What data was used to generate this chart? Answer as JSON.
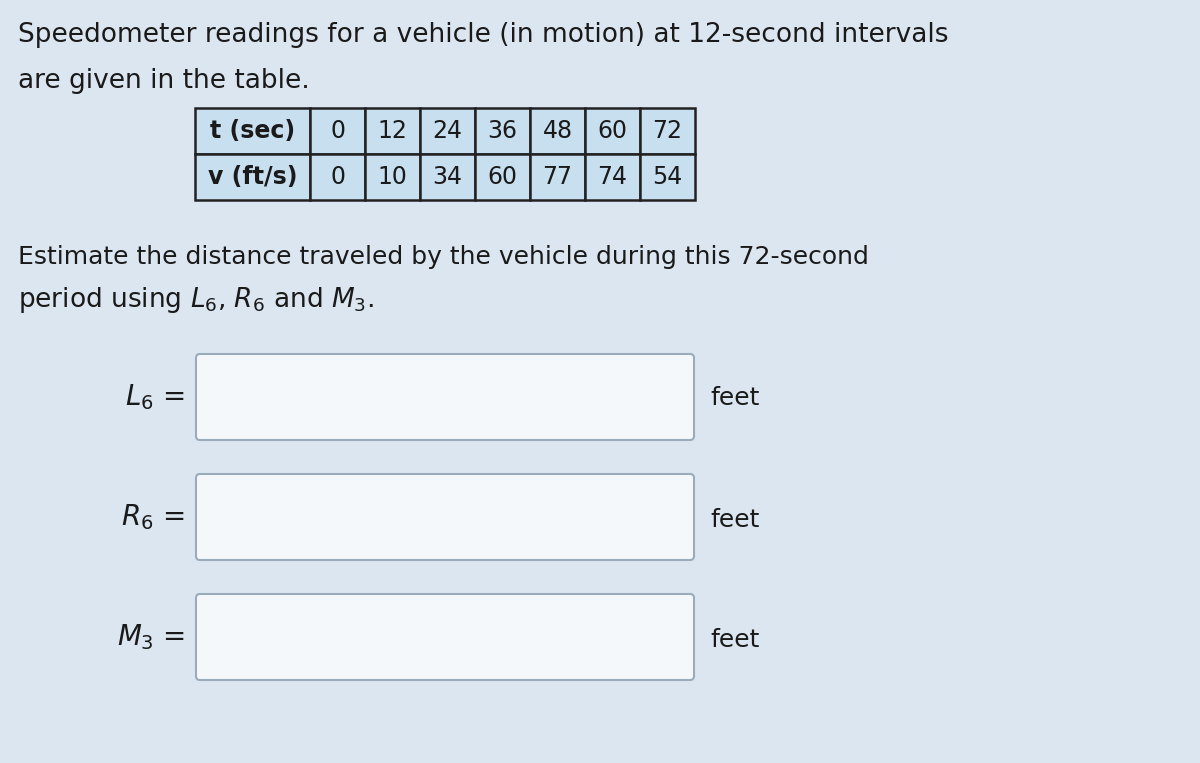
{
  "title_line1": "Speedometer readings for a vehicle (in motion) at 12-second intervals",
  "title_line2": "are given in the table.",
  "table_headers": [
    "t (sec)",
    "0",
    "12",
    "24",
    "36",
    "48",
    "60",
    "72"
  ],
  "table_row2": [
    "v (ft/s)",
    "0",
    "10",
    "34",
    "60",
    "77",
    "74",
    "54"
  ],
  "description_line1": "Estimate the distance traveled by the vehicle during this 72-second",
  "description_line2": "period using $L_6$, $R_6$ and $M_3$.",
  "label_L6": "$L_6$ =",
  "label_R6": "$R_6$ =",
  "label_M3": "$M_3$ =",
  "unit": "feet",
  "bg_color": "#dce6f0",
  "text_color": "#1a1a1a",
  "table_header_bg": "#c8dff0",
  "table_cell_bg": "#c8dff0",
  "table_border_color": "#222222",
  "input_box_facecolor": "#f5f8fb",
  "input_box_edgecolor": "#9aabba",
  "title_fontsize": 19,
  "body_fontsize": 18,
  "label_fontsize": 20,
  "table_fontsize": 17
}
